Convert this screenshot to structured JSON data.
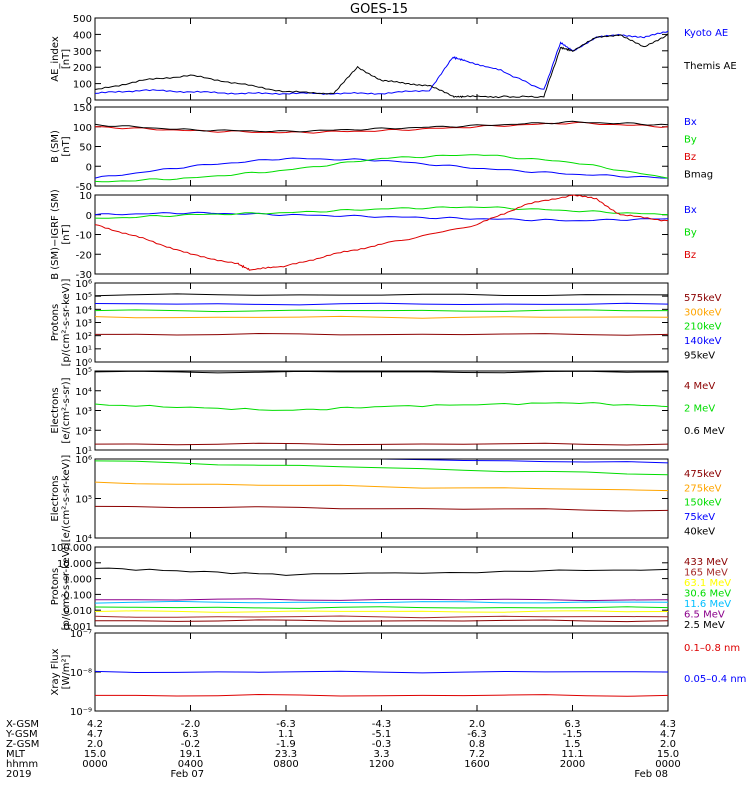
{
  "title": "GOES-15",
  "colors": {
    "black": "#000000",
    "blue": "#0000ff",
    "green": "#00dd00",
    "red": "#dd0000",
    "darkred": "#8b0000",
    "orange": "#ffa500",
    "cyan": "#00bfff",
    "yellow": "#ffff00",
    "magenta": "#8b008b",
    "brown": "#a52a2a"
  },
  "time_labels": [
    "0000",
    "0400",
    "0800",
    "1200",
    "1600",
    "2000",
    "0000"
  ],
  "chart_data": [
    {
      "id": "ae",
      "type": "line",
      "ylabel": [
        "AE_index",
        "[nT]"
      ],
      "ylim": [
        0,
        500
      ],
      "yticks": [
        "0",
        "100",
        "200",
        "300",
        "400",
        "500"
      ],
      "scale": "linear",
      "series": [
        {
          "name": "Kyoto AE",
          "color": "#0000ff",
          "x": [
            0,
            2,
            4,
            6,
            8,
            10,
            12,
            14,
            15,
            15.5,
            17,
            18.8,
            19.5,
            20,
            21,
            22,
            23,
            24
          ],
          "y": [
            40,
            60,
            50,
            40,
            40,
            40,
            40,
            60,
            260,
            240,
            180,
            60,
            350,
            300,
            380,
            400,
            380,
            420
          ]
        },
        {
          "name": "Themis AE",
          "color": "#000000",
          "x": [
            0,
            2,
            4,
            6,
            8,
            10,
            11,
            12,
            13,
            14,
            15,
            15.5,
            17,
            18.8,
            19.5,
            20,
            21,
            22,
            23,
            24
          ],
          "y": [
            60,
            120,
            150,
            100,
            50,
            40,
            200,
            120,
            100,
            90,
            20,
            20,
            20,
            20,
            320,
            300,
            380,
            400,
            320,
            400
          ]
        }
      ]
    },
    {
      "id": "b",
      "type": "line",
      "ylabel": [
        "B (SM)",
        "[nT]"
      ],
      "ylim": [
        -50,
        150
      ],
      "yticks": [
        "-50",
        "0",
        "50",
        "100",
        "150"
      ],
      "scale": "linear",
      "series": [
        {
          "name": "Bx",
          "color": "#0000ff",
          "x": [
            0,
            4,
            8,
            12,
            16,
            20,
            24
          ],
          "y": [
            -30,
            0,
            20,
            15,
            -5,
            -20,
            -30
          ]
        },
        {
          "name": "By",
          "color": "#00dd00",
          "x": [
            0,
            4,
            8,
            12,
            16,
            20,
            24
          ],
          "y": [
            -40,
            -30,
            -10,
            20,
            30,
            10,
            -30
          ]
        },
        {
          "name": "Bz",
          "color": "#dd0000",
          "x": [
            0,
            4,
            8,
            12,
            16,
            20,
            24
          ],
          "y": [
            100,
            90,
            85,
            90,
            100,
            110,
            100
          ]
        },
        {
          "name": "Bmag",
          "color": "#000000",
          "x": [
            0,
            4,
            8,
            12,
            16,
            20,
            24
          ],
          "y": [
            105,
            92,
            88,
            95,
            103,
            112,
            105
          ]
        }
      ]
    },
    {
      "id": "db",
      "type": "line",
      "ylabel": [
        "B (SM)−IGRF (SM)",
        "[nT]"
      ],
      "ylim": [
        -30,
        10
      ],
      "yticks": [
        "-30",
        "-20",
        "-10",
        "0",
        "10"
      ],
      "scale": "linear",
      "series": [
        {
          "name": "Bx",
          "color": "#0000ff",
          "x": [
            0,
            4,
            8,
            12,
            16,
            20,
            24
          ],
          "y": [
            0,
            1,
            0,
            -1,
            -2,
            -3,
            -2
          ]
        },
        {
          "name": "By",
          "color": "#00dd00",
          "x": [
            0,
            4,
            8,
            12,
            16,
            20,
            24
          ],
          "y": [
            -2,
            0,
            1,
            3,
            4,
            2,
            0
          ]
        },
        {
          "name": "Bz",
          "color": "#dd0000",
          "x": [
            0,
            2,
            4,
            6,
            6.5,
            8,
            10,
            12,
            16,
            18,
            20,
            21,
            22,
            24
          ],
          "y": [
            -5,
            -12,
            -20,
            -25,
            -28,
            -26,
            -20,
            -15,
            -5,
            5,
            10,
            8,
            0,
            -3
          ]
        }
      ]
    },
    {
      "id": "protons_kev",
      "type": "line",
      "ylabel": [
        "Protons",
        "[p/(cm²-s-sr-keV)]"
      ],
      "ylim": [
        0,
        6
      ],
      "yticks": [
        "10⁰",
        "10¹",
        "10²",
        "10³",
        "10⁴",
        "10⁵",
        "10⁶"
      ],
      "scale": "log",
      "series": [
        {
          "name": "575keV",
          "color": "#8b0000",
          "x": [
            0,
            24
          ],
          "y": [
            2.1,
            2.1
          ]
        },
        {
          "name": "300keV",
          "color": "#ffa500",
          "x": [
            0,
            24
          ],
          "y": [
            3.4,
            3.4
          ]
        },
        {
          "name": "210keV",
          "color": "#00dd00",
          "x": [
            0,
            24
          ],
          "y": [
            3.9,
            3.9
          ]
        },
        {
          "name": "140keV",
          "color": "#0000ff",
          "x": [
            0,
            24
          ],
          "y": [
            4.4,
            4.4
          ]
        },
        {
          "name": "95keV",
          "color": "#000000",
          "x": [
            0,
            24
          ],
          "y": [
            5.1,
            5.1
          ]
        }
      ]
    },
    {
      "id": "electrons_mev",
      "type": "line",
      "ylabel": [
        "Electrons",
        "[e/(cm²-s-sr)]"
      ],
      "ylim": [
        1,
        5
      ],
      "yticks": [
        "10¹",
        "10²",
        "10³",
        "10⁴",
        "10⁵"
      ],
      "scale": "log",
      "series": [
        {
          "name": "4 MeV",
          "color": "#8b0000",
          "x": [
            0,
            24
          ],
          "y": [
            1.3,
            1.3
          ]
        },
        {
          "name": "2 MeV",
          "color": "#00dd00",
          "x": [
            0,
            8,
            12,
            20,
            24
          ],
          "y": [
            3.3,
            3.0,
            3.2,
            3.4,
            3.2
          ]
        },
        {
          "name": "0.6 MeV",
          "color": "#000000",
          "x": [
            0,
            24
          ],
          "y": [
            4.95,
            4.95
          ]
        }
      ]
    },
    {
      "id": "electrons_kev",
      "type": "line",
      "ylabel": [
        "Electrons",
        "[e/(cm²-s-sr-keV)]"
      ],
      "ylim": [
        4,
        6
      ],
      "yticks": [
        "10⁴",
        "10⁵",
        "10⁶"
      ],
      "scale": "log",
      "series": [
        {
          "name": "475keV",
          "color": "#8b0000",
          "x": [
            0,
            24
          ],
          "y": [
            4.8,
            4.7
          ]
        },
        {
          "name": "275keV",
          "color": "#ffa500",
          "x": [
            0,
            24
          ],
          "y": [
            5.4,
            5.2
          ]
        },
        {
          "name": "150keV",
          "color": "#00dd00",
          "x": [
            0,
            24
          ],
          "y": [
            5.95,
            5.6
          ]
        },
        {
          "name": "75keV",
          "color": "#0000ff",
          "x": [
            0,
            24
          ],
          "y": [
            6.1,
            5.9
          ]
        },
        {
          "name": "40keV",
          "color": "#000000",
          "x": [
            0,
            24
          ],
          "y": [
            6.2,
            6.0
          ]
        }
      ]
    },
    {
      "id": "protons_mev",
      "type": "line",
      "ylabel": [
        "Protons",
        "[p/(cm²-s-sr-keV)]"
      ],
      "ylim": [
        -3,
        3
      ],
      "yticks": [
        "0.001",
        "0.010",
        "0.100",
        "1.000",
        "10.000",
        "100.000"
      ],
      "scale": "log",
      "series": [
        {
          "name": "433 MeV",
          "color": "#8b0000",
          "x": [
            0,
            24
          ],
          "y": [
            -2.6,
            -2.6
          ]
        },
        {
          "name": "165 MeV",
          "color": "#a52a2a",
          "x": [
            0,
            24
          ],
          "y": [
            -2.3,
            -2.3
          ]
        },
        {
          "name": "63.1 MeV",
          "color": "#ffff00",
          "x": [
            0,
            24
          ],
          "y": [
            -1.9,
            -1.9
          ]
        },
        {
          "name": "30.6 MeV",
          "color": "#00dd00",
          "x": [
            0,
            24
          ],
          "y": [
            -1.6,
            -1.6
          ]
        },
        {
          "name": "11.6 MeV",
          "color": "#00bfff",
          "x": [
            0,
            24
          ],
          "y": [
            -1.2,
            -1.2
          ]
        },
        {
          "name": "6.5 MeV",
          "color": "#8b008b",
          "x": [
            0,
            24
          ],
          "y": [
            -1.0,
            -1.0
          ]
        },
        {
          "name": "2.5 MeV",
          "color": "#000000",
          "x": [
            0,
            8,
            24
          ],
          "y": [
            1.4,
            0.9,
            1.3
          ]
        }
      ]
    },
    {
      "id": "xray",
      "type": "line",
      "ylabel": [
        "Xray Flux",
        "[W/m²]"
      ],
      "ylim": [
        -9,
        -7
      ],
      "yticks": [
        "10⁻⁹",
        "10⁻⁸",
        "10⁻⁷"
      ],
      "scale": "log",
      "series": [
        {
          "name": "0.1–0.8 nm",
          "color": "#dd0000",
          "x": [
            0,
            24
          ],
          "y": [
            -8.6,
            -8.6
          ]
        },
        {
          "name": "0.05–0.4 nm",
          "color": "#0000ff",
          "x": [
            0,
            24
          ],
          "y": [
            -8.0,
            -8.0
          ]
        }
      ]
    }
  ],
  "bottom_table": {
    "row_labels": [
      "X-GSM",
      "Y-GSM",
      "Z-GSM",
      "MLT",
      "hhmm",
      "2019"
    ],
    "columns": [
      [
        "4.2",
        "4.7",
        "2.0",
        "15.0",
        "0000",
        ""
      ],
      [
        "-2.0",
        "6.3",
        "-0.2",
        "19.1",
        "0400",
        "Feb 07"
      ],
      [
        "-6.3",
        "1.1",
        "-1.9",
        "23.3",
        "0800",
        ""
      ],
      [
        "-4.3",
        "-5.1",
        "-0.3",
        "3.3",
        "1200",
        ""
      ],
      [
        "2.0",
        "-6.3",
        "0.8",
        "7.2",
        "1600",
        ""
      ],
      [
        "6.3",
        "-1.5",
        "1.5",
        "11.1",
        "2000",
        ""
      ],
      [
        "4.3",
        "4.7",
        "2.0",
        "15.0",
        "0000",
        "Feb 08"
      ]
    ]
  }
}
